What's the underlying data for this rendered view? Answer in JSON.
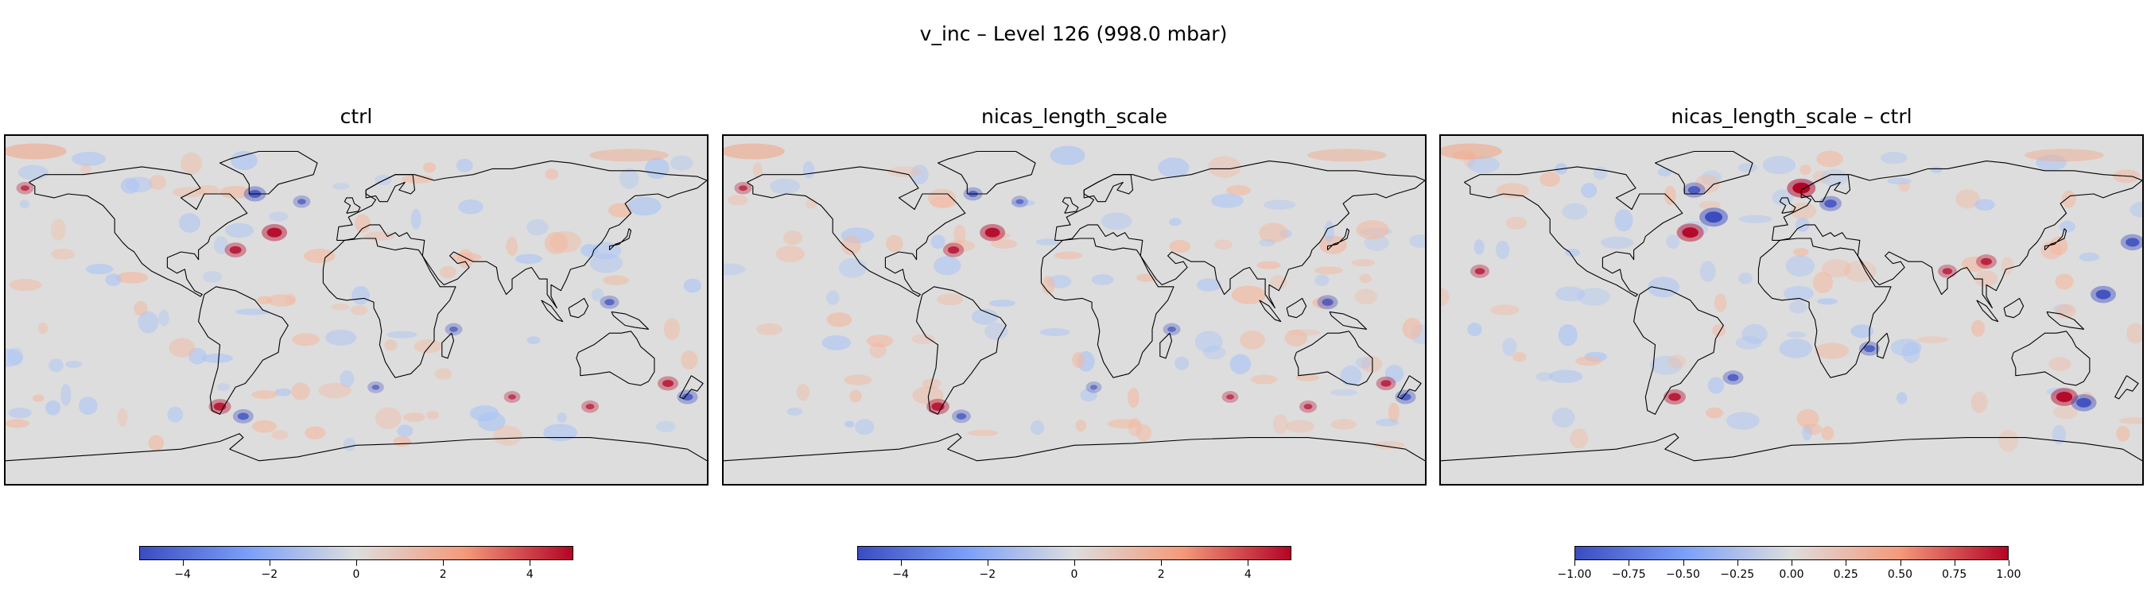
{
  "figure": {
    "title": "v_inc – Level 126 (998.0 mbar)"
  },
  "colormap": {
    "name": "coolwarm",
    "low": "#3b4cc0",
    "mid": "#dddddd",
    "high": "#b40426"
  },
  "panels": [
    {
      "title": "ctrl",
      "colorbar": {
        "min": -5,
        "max": 5,
        "ticks": [
          "−4",
          "−2",
          "0",
          "2",
          "4"
        ],
        "tick_values": [
          -4,
          -2,
          0,
          2,
          4
        ]
      },
      "features": [
        {
          "lon": -42,
          "lat": 40,
          "value": 4.0
        },
        {
          "lon": -62,
          "lat": 31,
          "value": 2.8
        },
        {
          "lon": -52,
          "lat": 60,
          "value": -3.0
        },
        {
          "lon": -28,
          "lat": 56,
          "value": -1.5
        },
        {
          "lon": -70,
          "lat": -50,
          "value": 3.0
        },
        {
          "lon": -58,
          "lat": -55,
          "value": -2.5
        },
        {
          "lon": 130,
          "lat": 4,
          "value": -2.0
        },
        {
          "lon": 170,
          "lat": -45,
          "value": -2.5
        },
        {
          "lon": 160,
          "lat": -38,
          "value": 2.5
        },
        {
          "lon": -170,
          "lat": 63,
          "value": 1.5
        },
        {
          "lon": 50,
          "lat": -10,
          "value": -1.5
        },
        {
          "lon": 120,
          "lat": -50,
          "value": 1.5
        },
        {
          "lon": 10,
          "lat": -40,
          "value": -1.2
        },
        {
          "lon": 80,
          "lat": -45,
          "value": 1.2
        }
      ]
    },
    {
      "title": "nicas_length_scale",
      "colorbar": {
        "min": -5,
        "max": 5,
        "ticks": [
          "−4",
          "−2",
          "0",
          "2",
          "4"
        ],
        "tick_values": [
          -4,
          -2,
          0,
          2,
          4
        ]
      },
      "features": [
        {
          "lon": -42,
          "lat": 40,
          "value": 4.0
        },
        {
          "lon": -62,
          "lat": 31,
          "value": 2.6
        },
        {
          "lon": -52,
          "lat": 60,
          "value": -2.0
        },
        {
          "lon": -28,
          "lat": 56,
          "value": -1.2
        },
        {
          "lon": -70,
          "lat": -50,
          "value": 3.2
        },
        {
          "lon": -58,
          "lat": -55,
          "value": -2.0
        },
        {
          "lon": 130,
          "lat": 4,
          "value": -2.5
        },
        {
          "lon": 170,
          "lat": -45,
          "value": -2.5
        },
        {
          "lon": 160,
          "lat": -38,
          "value": 2.2
        },
        {
          "lon": -170,
          "lat": 63,
          "value": 1.5
        },
        {
          "lon": 50,
          "lat": -10,
          "value": -1.5
        },
        {
          "lon": 120,
          "lat": -50,
          "value": 1.5
        },
        {
          "lon": 10,
          "lat": -40,
          "value": -1.0
        },
        {
          "lon": 80,
          "lat": -45,
          "value": 1.2
        }
      ]
    },
    {
      "title": "nicas_length_scale – ctrl",
      "colorbar": {
        "min": -1,
        "max": 1,
        "ticks": [
          "−1.00",
          "−0.75",
          "−0.50",
          "−0.25",
          "0.00",
          "0.25",
          "0.50",
          "0.75",
          "1.00"
        ],
        "tick_values": [
          -1,
          -0.75,
          -0.5,
          -0.25,
          0,
          0.25,
          0.5,
          0.75,
          1
        ]
      },
      "features": [
        {
          "lon": 5,
          "lat": 63,
          "value": 1.0
        },
        {
          "lon": -40,
          "lat": 48,
          "value": -1.0
        },
        {
          "lon": -52,
          "lat": 40,
          "value": 0.9
        },
        {
          "lon": 20,
          "lat": 55,
          "value": -0.6
        },
        {
          "lon": -50,
          "lat": 62,
          "value": -0.6
        },
        {
          "lon": 140,
          "lat": -45,
          "value": 0.9
        },
        {
          "lon": 150,
          "lat": -48,
          "value": -0.8
        },
        {
          "lon": 160,
          "lat": 8,
          "value": -0.8
        },
        {
          "lon": 175,
          "lat": 35,
          "value": -0.7
        },
        {
          "lon": 100,
          "lat": 25,
          "value": 0.5
        },
        {
          "lon": -60,
          "lat": -45,
          "value": 0.6
        },
        {
          "lon": -30,
          "lat": -35,
          "value": -0.5
        },
        {
          "lon": 40,
          "lat": -20,
          "value": -0.5
        },
        {
          "lon": 80,
          "lat": 20,
          "value": 0.4
        },
        {
          "lon": -160,
          "lat": 20,
          "value": 0.4
        }
      ]
    }
  ]
}
